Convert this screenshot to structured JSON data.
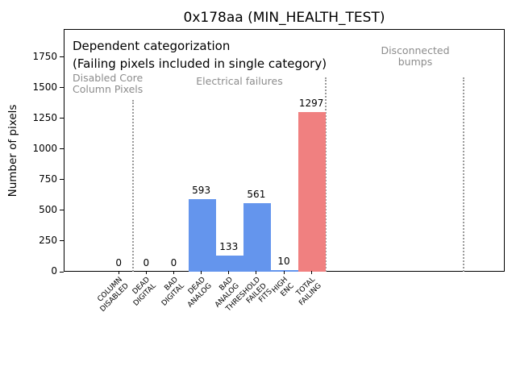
{
  "chart_data": {
    "type": "bar",
    "title": "0x178aa (MIN_HEALTH_TEST)",
    "ylabel": "Number of pixels",
    "xlabel": "",
    "categories": [
      [
        "COLUMN",
        "DISABLED"
      ],
      [
        "DEAD",
        "DIGITAL"
      ],
      [
        "BAD",
        "DIGITAL"
      ],
      [
        "DEAD",
        "ANALOG"
      ],
      [
        "BAD",
        "ANALOG"
      ],
      [
        "THRESHOLD",
        "FAILED",
        "FITS"
      ],
      [
        "HIGH",
        "ENC"
      ],
      [
        "TOTAL",
        "FAILING"
      ]
    ],
    "values": [
      0,
      0,
      0,
      593,
      133,
      561,
      10,
      1297
    ],
    "value_labels": [
      "0",
      "0",
      "0",
      "593",
      "133",
      "561",
      "10",
      "1297"
    ],
    "bar_colors": [
      "#6495ed",
      "#6495ed",
      "#6495ed",
      "#6495ed",
      "#6495ed",
      "#6495ed",
      "#6495ed",
      "#f08080"
    ],
    "bar_width": 1.0,
    "yticks": [
      0,
      250,
      500,
      750,
      1000,
      1250,
      1500,
      1750
    ],
    "ylim": [
      0,
      1970
    ],
    "xlim": [
      -2,
      14
    ],
    "grid": false,
    "legend": null,
    "separators": [
      {
        "x": 0.5,
        "ymin": 0,
        "ymax": 1400
      },
      {
        "x": 7.5,
        "ymin": 0,
        "ymax": 1580
      },
      {
        "x": 12.5,
        "ymin": 0,
        "ymax": 1580
      }
    ],
    "annotations": [
      {
        "name": "dependent-categorization-note",
        "lines": [
          "Dependent categorization",
          "(Failing pixels included in single category)"
        ],
        "color": "#000000"
      },
      {
        "name": "disabled-core-column-pixels-zone-label",
        "lines": [
          "Disabled Core",
          "Column Pixels"
        ],
        "color": "#8c8c8c"
      },
      {
        "name": "electrical-failures-zone-label",
        "lines": [
          "Electrical failures"
        ],
        "color": "#8c8c8c"
      },
      {
        "name": "disconnected-bumps-zone-label",
        "lines": [
          "Disconnected",
          "bumps"
        ],
        "color": "#8c8c8c"
      }
    ],
    "colors": {
      "bar_blue": "#6495ed",
      "bar_red": "#f08080",
      "annotation_gray": "#8c8c8c",
      "separator_gray": "#9a9a9a",
      "axis_black": "#000000",
      "background": "#ffffff"
    }
  }
}
